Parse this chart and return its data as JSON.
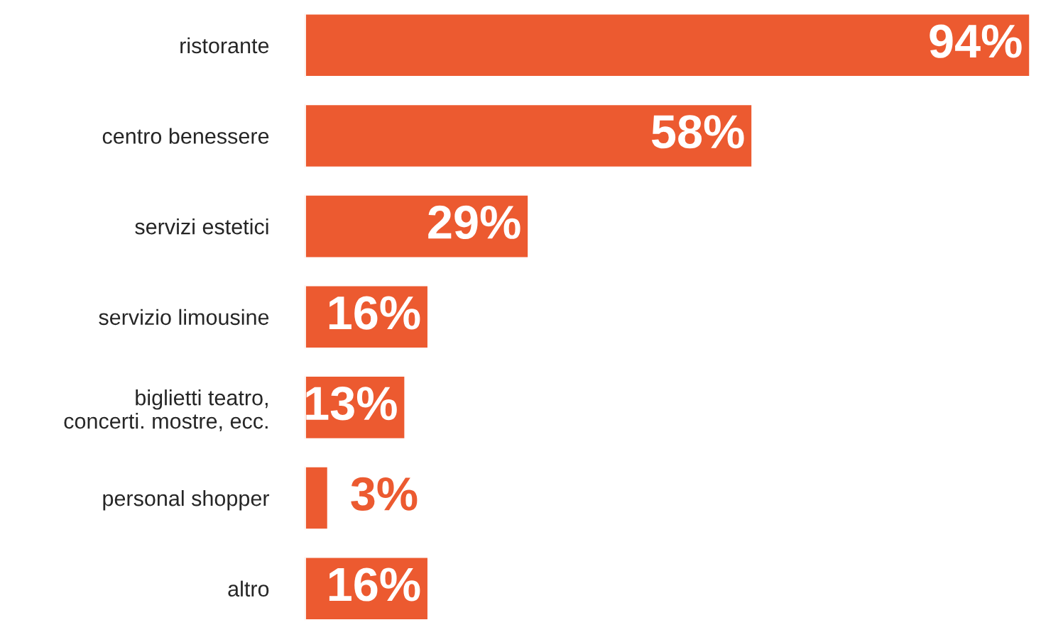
{
  "chart_data": {
    "type": "bar",
    "orientation": "horizontal",
    "categories": [
      "ristorante",
      "centro benessere",
      "servizi estetici",
      "servizio limousine",
      "biglietti teatro,\nconcerti. mostre, ecc.",
      "personal shopper",
      "altro"
    ],
    "values": [
      94,
      58,
      29,
      16,
      13,
      3,
      16
    ],
    "color": "#ec5a30",
    "data_labels": true,
    "value_labels": [
      "94%",
      "58%",
      "29%",
      "16%",
      "13%",
      "3%",
      "16%"
    ],
    "tick_labels": "y",
    "grid": false,
    "legend": false
  }
}
